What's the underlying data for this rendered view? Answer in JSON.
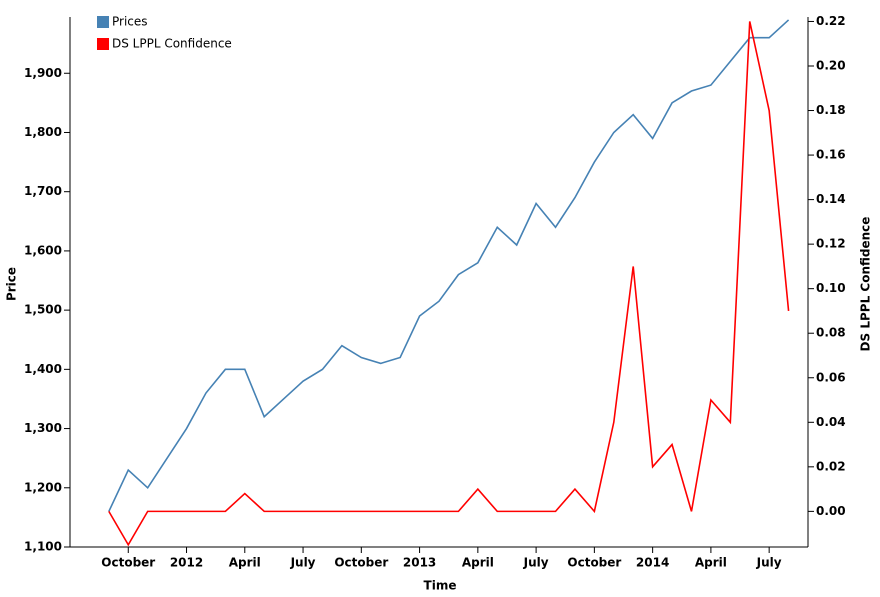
{
  "chart_data": {
    "type": "line",
    "x_label": "Time",
    "y_label": "Price",
    "y2_label": "DS LPPL Confidence",
    "x": [
      "2011-09",
      "2011-10",
      "2011-11",
      "2011-12",
      "2012-01",
      "2012-02",
      "2012-03",
      "2012-04",
      "2012-05",
      "2012-06",
      "2012-07",
      "2012-08",
      "2012-09",
      "2012-10",
      "2012-11",
      "2012-12",
      "2013-01",
      "2013-02",
      "2013-03",
      "2013-04",
      "2013-05",
      "2013-06",
      "2013-07",
      "2013-08",
      "2013-09",
      "2013-10",
      "2013-11",
      "2013-12",
      "2014-01",
      "2014-02",
      "2014-03",
      "2014-04",
      "2014-05",
      "2014-06",
      "2014-07",
      "2014-08"
    ],
    "series": [
      {
        "name": "Prices",
        "color": "#4682b4",
        "values": [
          1160,
          1230,
          1200,
          1250,
          1300,
          1360,
          1400,
          1400,
          1320,
          1350,
          1380,
          1400,
          1440,
          1420,
          1410,
          1420,
          1490,
          1515,
          1560,
          1580,
          1640,
          1610,
          1680,
          1640,
          1690,
          1750,
          1800,
          1830,
          1790,
          1850,
          1870,
          1880,
          1920,
          1960,
          1960,
          1990
        ]
      },
      {
        "name": "DS LPPL Confidence",
        "color": "#ff0000",
        "axis": "y2",
        "values": [
          0,
          -0.015,
          0,
          0,
          0,
          0,
          0,
          0.008,
          0,
          0,
          0,
          0,
          0,
          0,
          0,
          0,
          0,
          0,
          0,
          0.01,
          0,
          0,
          0,
          0,
          0.01,
          0,
          0.04,
          0.11,
          0.02,
          0.03,
          0,
          0.05,
          0.04,
          0.22,
          0.18,
          0.09
        ]
      }
    ],
    "xlim": [
      "2011-07",
      "2014-09"
    ],
    "xticks": [
      {
        "value": "2011-10",
        "label": "October"
      },
      {
        "value": "2012-01",
        "label": "2012"
      },
      {
        "value": "2012-04",
        "label": "April"
      },
      {
        "value": "2012-07",
        "label": "July"
      },
      {
        "value": "2012-10",
        "label": "October"
      },
      {
        "value": "2013-01",
        "label": "2013"
      },
      {
        "value": "2013-04",
        "label": "April"
      },
      {
        "value": "2013-07",
        "label": "July"
      },
      {
        "value": "2013-10",
        "label": "October"
      },
      {
        "value": "2014-01",
        "label": "2014"
      },
      {
        "value": "2014-04",
        "label": "April"
      },
      {
        "value": "2014-07",
        "label": "July"
      }
    ],
    "ylim": [
      1100,
      1995
    ],
    "yticks": [
      {
        "value": 1100,
        "label": "1,100"
      },
      {
        "value": 1200,
        "label": "1,200"
      },
      {
        "value": 1300,
        "label": "1,300"
      },
      {
        "value": 1400,
        "label": "1,400"
      },
      {
        "value": 1500,
        "label": "1,500"
      },
      {
        "value": 1600,
        "label": "1,600"
      },
      {
        "value": 1700,
        "label": "1,700"
      },
      {
        "value": 1800,
        "label": "1,800"
      },
      {
        "value": 1900,
        "label": "1,900"
      }
    ],
    "y2lim": [
      -0.016,
      0.222
    ],
    "y2ticks": [
      {
        "value": 0,
        "label": "0.00"
      },
      {
        "value": 0.02,
        "label": "0.02"
      },
      {
        "value": 0.04,
        "label": "0.04"
      },
      {
        "value": 0.06,
        "label": "0.06"
      },
      {
        "value": 0.08,
        "label": "0.08"
      },
      {
        "value": 0.1,
        "label": "0.10"
      },
      {
        "value": 0.12,
        "label": "0.12"
      },
      {
        "value": 0.14,
        "label": "0.14"
      },
      {
        "value": 0.16,
        "label": "0.16"
      },
      {
        "value": 0.18,
        "label": "0.18"
      },
      {
        "value": 0.2,
        "label": "0.20"
      },
      {
        "value": 0.22,
        "label": "0.22"
      }
    ],
    "legend": "top-left"
  }
}
